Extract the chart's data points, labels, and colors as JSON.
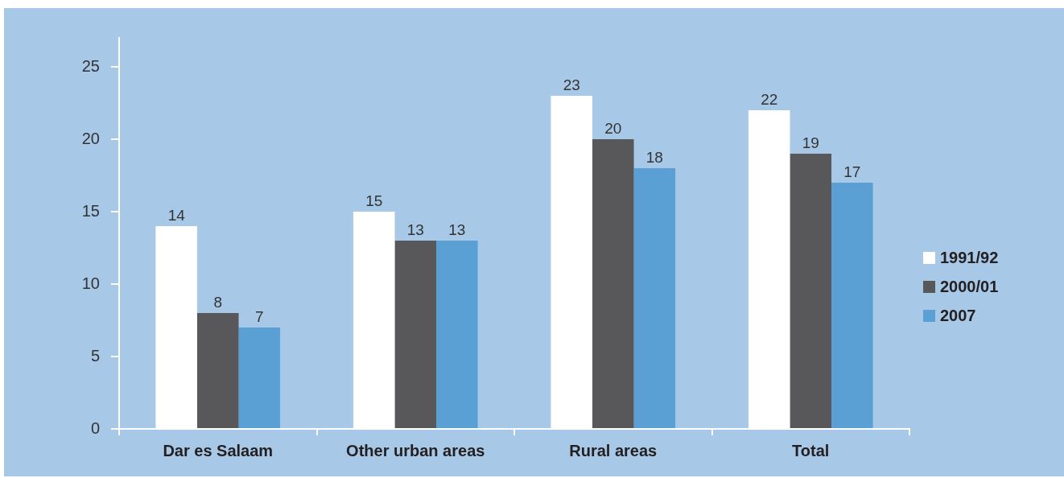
{
  "chart_data": {
    "type": "bar",
    "categories": [
      "Dar es Salaam",
      "Other urban areas",
      "Rural areas",
      "Total"
    ],
    "series": [
      {
        "name": "1991/92",
        "color": "#ffffff",
        "values": [
          14,
          15,
          23,
          22
        ]
      },
      {
        "name": "2000/01",
        "color": "#58585a",
        "values": [
          8,
          13,
          20,
          19
        ]
      },
      {
        "name": "2007",
        "color": "#5ba0d4",
        "values": [
          7,
          13,
          18,
          17
        ]
      }
    ],
    "ylim": [
      0,
      27
    ],
    "yticks": [
      0,
      5,
      10,
      15,
      20,
      25
    ],
    "data_labels": true,
    "legend": "right"
  }
}
